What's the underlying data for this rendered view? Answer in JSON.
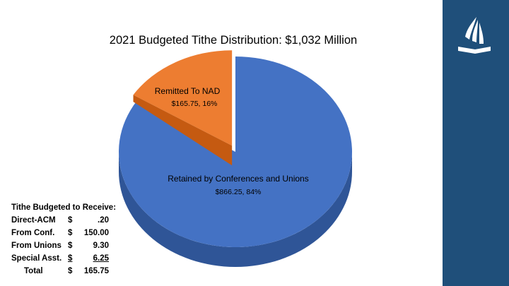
{
  "title": "2021 Budgeted Tithe Distribution:  $1,032 Million",
  "colors": {
    "retained": "#4472c4",
    "retained_side": "#2f5597",
    "nad": "#ed7d31",
    "nad_side": "#c55a11",
    "side_bar": "#1f4f7a"
  },
  "logo": {
    "icon": "sda-church-logo-icon"
  },
  "chart_data": {
    "type": "pie",
    "title": "2021 Budgeted Tithe Distribution:  $1,032 Million",
    "style": "3d-exploded",
    "slices": [
      {
        "label": "Retained by Conferences and Unions",
        "value": 866.25,
        "percent": 84,
        "data_label": "$866.25, 84%"
      },
      {
        "label": "Remitted To NAD",
        "value": 165.75,
        "percent": 16,
        "data_label": "$165.75, 16%"
      }
    ]
  },
  "table": {
    "heading": "Tithe Budgeted to Receive:",
    "rows": [
      {
        "label": "Direct-ACM",
        "currency": "$",
        "amount": ".20"
      },
      {
        "label": "From Conf.",
        "currency": "$",
        "amount": "150.00"
      },
      {
        "label": "From Unions",
        "currency": "$",
        "amount": "9.30"
      },
      {
        "label": "Special Asst.",
        "currency": "$",
        "amount": "6.25"
      }
    ],
    "total": {
      "label": "Total",
      "currency": "$",
      "amount": "165.75"
    }
  }
}
